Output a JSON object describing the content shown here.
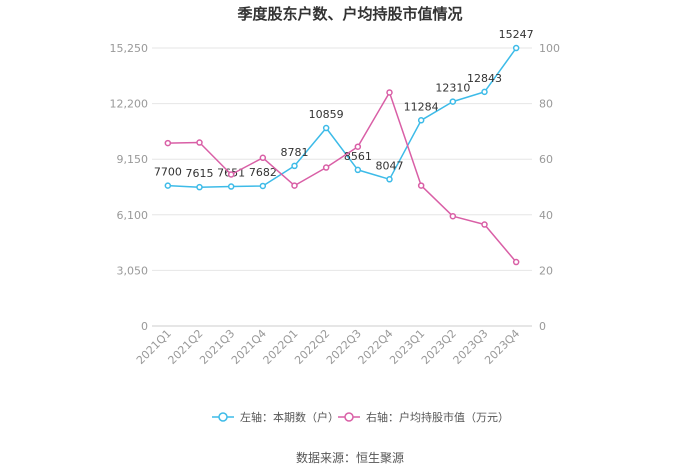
{
  "chart_data": {
    "type": "line",
    "title": "季度股东户数、户均持股市值情况",
    "categories": [
      "2021Q1",
      "2021Q2",
      "2021Q3",
      "2021Q4",
      "2022Q1",
      "2022Q2",
      "2022Q3",
      "2022Q4",
      "2023Q1",
      "2023Q2",
      "2023Q3",
      "2023Q4"
    ],
    "left_axis": {
      "ticks": [
        "0",
        "3,050",
        "6,100",
        "9,150",
        "12,200",
        "15,250"
      ],
      "ylim": [
        0,
        15250
      ]
    },
    "right_axis": {
      "ticks": [
        "0",
        "20",
        "40",
        "60",
        "80",
        "100"
      ],
      "ylim": [
        0,
        100
      ]
    },
    "series": [
      {
        "name": "左轴：本期数（户）",
        "axis": "left",
        "color": "#3dbbe8",
        "values": [
          7700,
          7615,
          7651,
          7682,
          8781,
          10859,
          8561,
          8047,
          11284,
          12310,
          12843,
          15247
        ],
        "labels": [
          "7700",
          "7615",
          "7651",
          "7682",
          "8781",
          "10859",
          "8561",
          "8047",
          "11284",
          "12310",
          "12843",
          "15247"
        ]
      },
      {
        "name": "右轴：户均持股市值（万元）",
        "axis": "right",
        "color": "#d95fa6",
        "values": [
          65.8,
          66.0,
          54.5,
          60.5,
          50.5,
          57.0,
          64.5,
          84.0,
          50.5,
          39.5,
          36.5,
          23.0
        ]
      }
    ],
    "grid": true,
    "legend_position": "bottom"
  },
  "source": "数据来源：恒生聚源"
}
